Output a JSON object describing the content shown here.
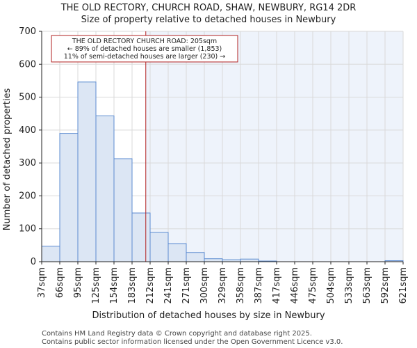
{
  "chart_data": {
    "type": "bar",
    "title": "THE OLD RECTORY, CHURCH ROAD, SHAW, NEWBURY, RG14 2DR",
    "subtitle": "Size of property relative to detached houses in Newbury",
    "xlabel": "Distribution of detached houses by size in Newbury",
    "ylabel": "Number of detached properties",
    "ylim": [
      0,
      700
    ],
    "yticks": [
      0,
      100,
      200,
      300,
      400,
      500,
      600,
      700
    ],
    "tick_labels": [
      "37sqm",
      "66sqm",
      "95sqm",
      "125sqm",
      "154sqm",
      "183sqm",
      "212sqm",
      "241sqm",
      "271sqm",
      "300sqm",
      "329sqm",
      "358sqm",
      "387sqm",
      "417sqm",
      "446sqm",
      "475sqm",
      "504sqm",
      "533sqm",
      "563sqm",
      "592sqm",
      "621sqm"
    ],
    "values": [
      47,
      390,
      546,
      443,
      313,
      148,
      89,
      55,
      28,
      9,
      6,
      8,
      2,
      0,
      0,
      0,
      0,
      0,
      0,
      3
    ],
    "marker": {
      "value": 205,
      "bin_index": 5.76,
      "color": "#b22222"
    },
    "annotation": {
      "line1": "THE OLD RECTORY CHURCH ROAD: 205sqm",
      "line2": "← 89% of detached houses are smaller (1,853)",
      "line3": "11% of semi-detached houses are larger (230) →"
    },
    "colors": {
      "bar_fill": "#dce6f4",
      "bar_stroke": "#5b8bd0",
      "shade_fill": "#eef3fb",
      "grid": "#d9d9d9"
    }
  },
  "footer": {
    "line1": "Contains HM Land Registry data © Crown copyright and database right 2025.",
    "line2": "Contains public sector information licensed under the Open Government Licence v3.0."
  }
}
